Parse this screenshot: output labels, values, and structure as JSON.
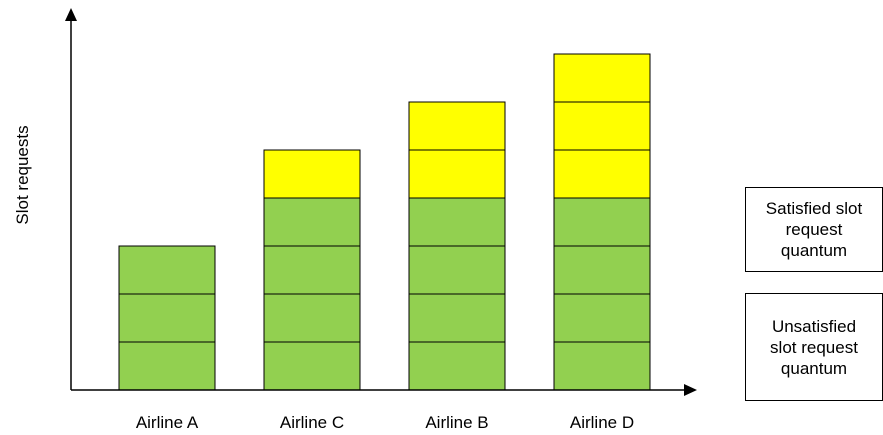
{
  "chart_data": {
    "type": "bar",
    "stacked": true,
    "categories": [
      "Airline A",
      "Airline C",
      "Airline B",
      "Airline D"
    ],
    "series": [
      {
        "name": "Satisfied slot request quantum",
        "values": [
          3,
          4,
          4,
          4
        ],
        "color": "#92d050"
      },
      {
        "name": "Unsatisfied slot request quantum",
        "values": [
          0,
          1,
          2,
          3
        ],
        "color": "#ffff00"
      }
    ],
    "ylabel": "Slot requests",
    "xlabel": "",
    "ylim": [
      0,
      7
    ],
    "grid": false,
    "legend_position": "right"
  },
  "legend": {
    "satisfied": [
      "Satisfied slot",
      "request",
      "quantum"
    ],
    "unsatisfied": [
      "Unsatisfied",
      "slot request",
      "quantum"
    ]
  }
}
